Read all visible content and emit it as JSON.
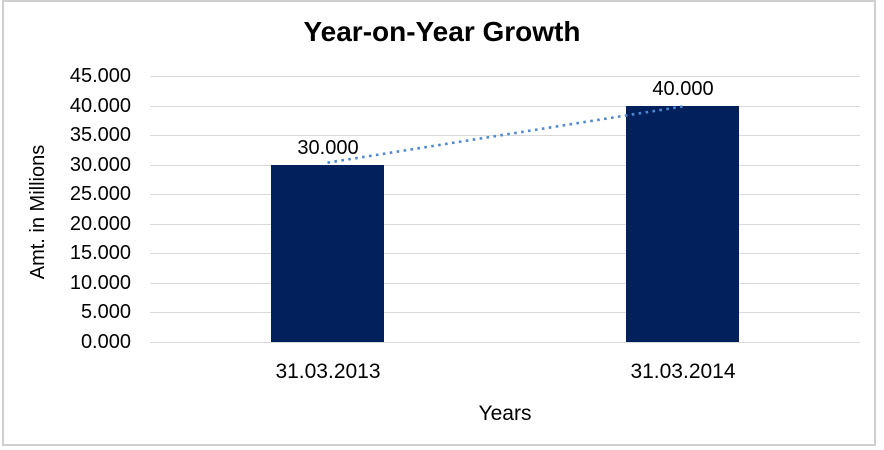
{
  "chart_data": {
    "type": "bar",
    "title": "Year-on-Year Growth",
    "xlabel": "Years",
    "ylabel": "Amt. in Millions",
    "categories": [
      "31.03.2013",
      "31.03.2014"
    ],
    "values": [
      30000,
      40000
    ],
    "data_labels": [
      "30.000",
      "40.000"
    ],
    "ylim": [
      0,
      45000
    ],
    "y_tick_step": 5000,
    "y_ticks": [
      {
        "value": 45000,
        "label": "45.000"
      },
      {
        "value": 40000,
        "label": "40.000"
      },
      {
        "value": 35000,
        "label": "35.000"
      },
      {
        "value": 30000,
        "label": "30.000"
      },
      {
        "value": 25000,
        "label": "25.000"
      },
      {
        "value": 20000,
        "label": "20.000"
      },
      {
        "value": 15000,
        "label": "15.000"
      },
      {
        "value": 10000,
        "label": "10.000"
      },
      {
        "value": 5000,
        "label": "5.000"
      },
      {
        "value": 0,
        "label": "0.000"
      }
    ],
    "grid": true,
    "legend": "none",
    "trendline": {
      "style": "dotted",
      "from_category": "31.03.2013",
      "to_category": "31.03.2014"
    },
    "colors": {
      "bar": "#02215c",
      "trendline": "#4f8ad2",
      "gridline": "#d9d9d9",
      "text": "#000000",
      "background": "#ffffff",
      "border": "#cfcfcf"
    }
  }
}
